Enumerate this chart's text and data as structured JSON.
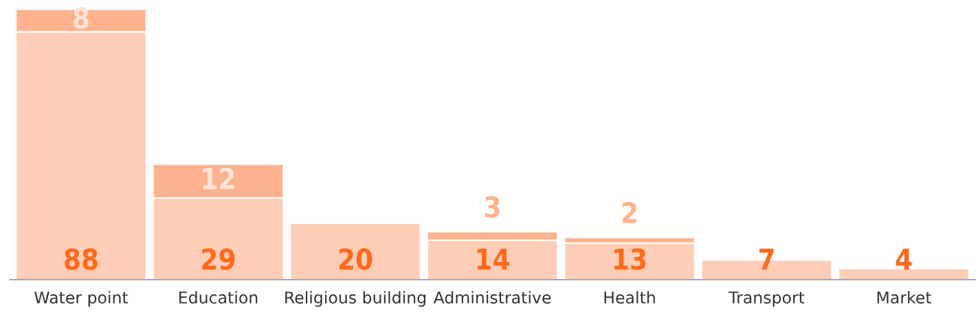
{
  "chart_data": {
    "type": "bar",
    "stacked": true,
    "data_labels": true,
    "grid": false,
    "legend": false,
    "categories": [
      "Water point",
      "Education",
      "Religious building",
      "Administrative",
      "Health",
      "Transport",
      "Market"
    ],
    "series": [
      {
        "color": "#fecdb7",
        "values": [
          88,
          29,
          20,
          14,
          13,
          7,
          4
        ]
      },
      {
        "color": "#feb28e",
        "values": [
          8,
          12,
          null,
          3,
          2,
          null,
          null
        ]
      }
    ]
  }
}
